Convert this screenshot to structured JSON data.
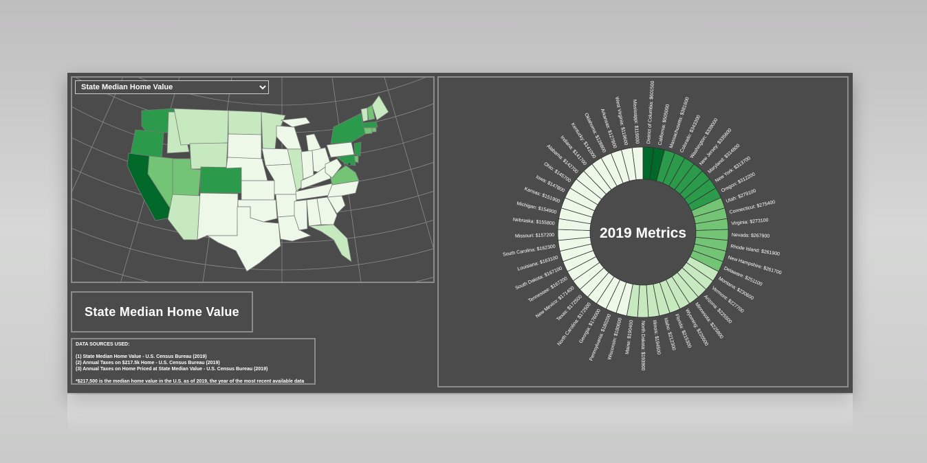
{
  "metric_select": {
    "value": "State Median Home Value",
    "options": [
      "State Median Home Value"
    ]
  },
  "panel_title": "State Median Home Value",
  "sources": {
    "heading": "DATA SOURCES USED:",
    "items": [
      "(1) State Median Home Value - U.S. Census Bureau (2019)",
      "(2) Annual Taxes on $217.5k Home - U.S. Census Bureau (2019)",
      "(3) Annual Taxes on Home Priced at State Median Value - U.S. Census Bureau (2019)"
    ],
    "footnote": "*$217,500 is the median home value in the U.S. as of 2019, the year of the most recent available data"
  },
  "colors": {
    "dark": "#00692a",
    "mid": "#2b9a4b",
    "light": "#74c476",
    "pale": "#c7e9c0",
    "faint": "#edf8e9"
  },
  "map": {
    "state_values": {
      "CA": 505000,
      "WA": 339000,
      "OR": 312200,
      "NV": 267900,
      "ID": 212300,
      "MT": 230600,
      "WY": 220500,
      "UT": 279100,
      "AZ": 225500,
      "NM": 171400,
      "CO": 343300,
      "ND": 193900,
      "SD": 167100,
      "NE": 155800,
      "KS": 151900,
      "OK": 128800,
      "TX": 172500,
      "MN": 225800,
      "IA": 147800,
      "MO": 157200,
      "AR": 127800,
      "LA": 163100,
      "WI": 180600,
      "IL": 194500,
      "MI": 154900,
      "IN": 141700,
      "OH": 145700,
      "KY": 141000,
      "TN": 167200,
      "MS": 119000,
      "AL": 142700,
      "GA": 176000,
      "FL": 215300,
      "SC": 162300,
      "NC": 172500,
      "VA": 273100,
      "WV": 119600,
      "PA": 180200,
      "NY": 313700,
      "VT": 227700,
      "NH": 261700,
      "ME": 190400,
      "MA": 381600,
      "RI": 261900,
      "CT": 275400,
      "NJ": 335600,
      "DE": 251100,
      "MD": 314800,
      "DC": 601500
    }
  },
  "chart_data": {
    "type": "radial-bar",
    "title": "2019 Metrics",
    "categories": [
      "District of Columbia",
      "California",
      "Massachusetts",
      "Colorado",
      "Washington",
      "New Jersey",
      "Maryland",
      "New York",
      "Oregon",
      "Utah",
      "Connecticut",
      "Virginia",
      "Nevada",
      "Rhode Island",
      "New Hampshire",
      "Delaware",
      "Montana",
      "Vermont",
      "Arizona",
      "Minnesota",
      "Wyoming",
      "Florida",
      "Idaho",
      "Illinois",
      "North Dakota",
      "Maine",
      "Wisconsin",
      "Pennsylvania",
      "Georgia",
      "North Carolina",
      "Texas",
      "New Mexico",
      "Tennessee",
      "South Dakota",
      "Louisiana",
      "South Carolina",
      "Missouri",
      "Nebraska",
      "Michigan",
      "Kansas",
      "Iowa",
      "Ohio",
      "Alabama",
      "Indiana",
      "Kentucky",
      "Oklahoma",
      "Arkansas",
      "West Virginia",
      "Mississippi"
    ],
    "values": [
      601500,
      505000,
      381600,
      343300,
      339000,
      335600,
      314800,
      313700,
      312200,
      279100,
      275400,
      273100,
      267900,
      261900,
      261700,
      251100,
      230600,
      227700,
      225500,
      225800,
      220500,
      215300,
      212300,
      194500,
      193900,
      190400,
      180600,
      180200,
      176000,
      172500,
      172500,
      171400,
      167200,
      167100,
      163100,
      162300,
      157200,
      155800,
      154900,
      151900,
      147800,
      145700,
      142700,
      141700,
      141000,
      128800,
      127800,
      119600,
      119000
    ],
    "labels": [
      "District of Columbia: $601500",
      "California: $505000",
      "Massachusetts: $381600",
      "Colorado: $343300",
      "Washington: $339000",
      "New Jersey: $335600",
      "Maryland: $314800",
      "New York: $313700",
      "Oregon: $312200",
      "Utah: $279100",
      "Connecticut: $275400",
      "Virginia: $273100",
      "Nevada: $267900",
      "Rhode Island: $261900",
      "New Hampshire: $261700",
      "Delaware: $251100",
      "Montana: $230600",
      "Vermont: $227700",
      "Arizona: $225500",
      "Minnesota: $225800",
      "Wyoming: $220500",
      "Florida: $215300",
      "Idaho: $212300",
      "Illinois: $194500",
      "North Dakota: $193900",
      "Maine: $190400",
      "Wisconsin: $180600",
      "Pennsylvania: $180200",
      "Georgia: $176000",
      "North Carolina: $172500",
      "Texas: $172500",
      "New Mexico: $171400",
      "Tennessee: $167200",
      "South Dakota: $167100",
      "Louisiana: $163100",
      "South Carolina: $162300",
      "Missouri: $157200",
      "Nebraska: $155800",
      "Michigan: $154900",
      "Kansas: $151900",
      "Iowa: $147800",
      "Ohio: $145700",
      "Alabama: $142700",
      "Indiana: $141700",
      "Kentucky: $141000",
      "Oklahoma: $128800",
      "Arkansas: $127800",
      "West Virginia: $119600",
      "Mississippi: $119000"
    ]
  }
}
